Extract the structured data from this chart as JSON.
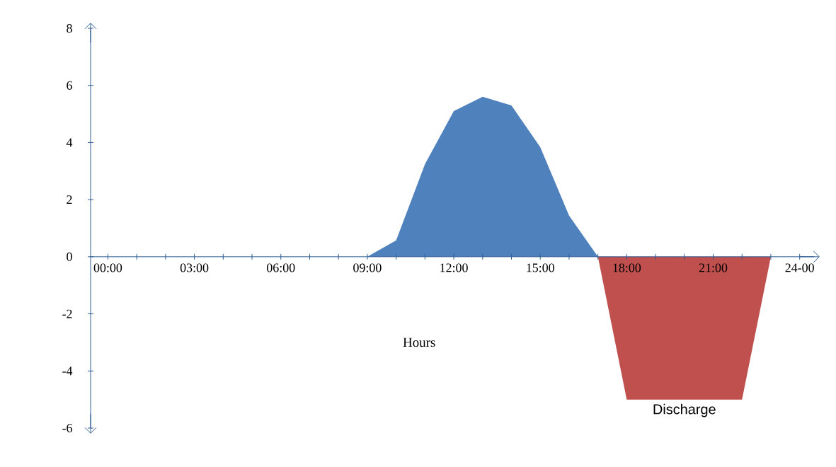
{
  "chart_data": {
    "type": "area",
    "xlabel": "Hours",
    "xlim": [
      -0.6,
      24.5
    ],
    "ylim": [
      -6,
      8
    ],
    "yticks": [
      -6,
      -4,
      -2,
      0,
      2,
      4,
      6,
      8
    ],
    "xticks": [
      {
        "value": 0,
        "label": "00:00"
      },
      {
        "value": 1,
        "label": null
      },
      {
        "value": 2,
        "label": null
      },
      {
        "value": 3,
        "label": "03:00"
      },
      {
        "value": 4,
        "label": null
      },
      {
        "value": 5,
        "label": null
      },
      {
        "value": 6,
        "label": "06:00"
      },
      {
        "value": 7,
        "label": null
      },
      {
        "value": 8,
        "label": null
      },
      {
        "value": 9,
        "label": "09:00"
      },
      {
        "value": 10,
        "label": null
      },
      {
        "value": 11,
        "label": null
      },
      {
        "value": 12,
        "label": "12:00"
      },
      {
        "value": 13,
        "label": null
      },
      {
        "value": 14,
        "label": null
      },
      {
        "value": 15,
        "label": "15:00"
      },
      {
        "value": 16,
        "label": null
      },
      {
        "value": 17,
        "label": null
      },
      {
        "value": 18,
        "label": "18:00"
      },
      {
        "value": 19,
        "label": null
      },
      {
        "value": 20,
        "label": null
      },
      {
        "value": 21,
        "label": "21:00"
      },
      {
        "value": 22,
        "label": null
      },
      {
        "value": 23,
        "label": null
      },
      {
        "value": 24,
        "label": "24-00"
      }
    ],
    "series": [
      {
        "color": "#4f81bd",
        "x": [
          9,
          10,
          11,
          12,
          13,
          14,
          15,
          16,
          17
        ],
        "values": [
          0,
          0.57,
          3.24,
          5.1,
          5.6,
          5.3,
          3.84,
          1.44,
          0
        ]
      },
      {
        "name": "Discharge",
        "color": "#c0504d",
        "x": [
          17,
          18,
          22,
          23
        ],
        "values": [
          0,
          -5,
          -5,
          0
        ]
      }
    ]
  }
}
